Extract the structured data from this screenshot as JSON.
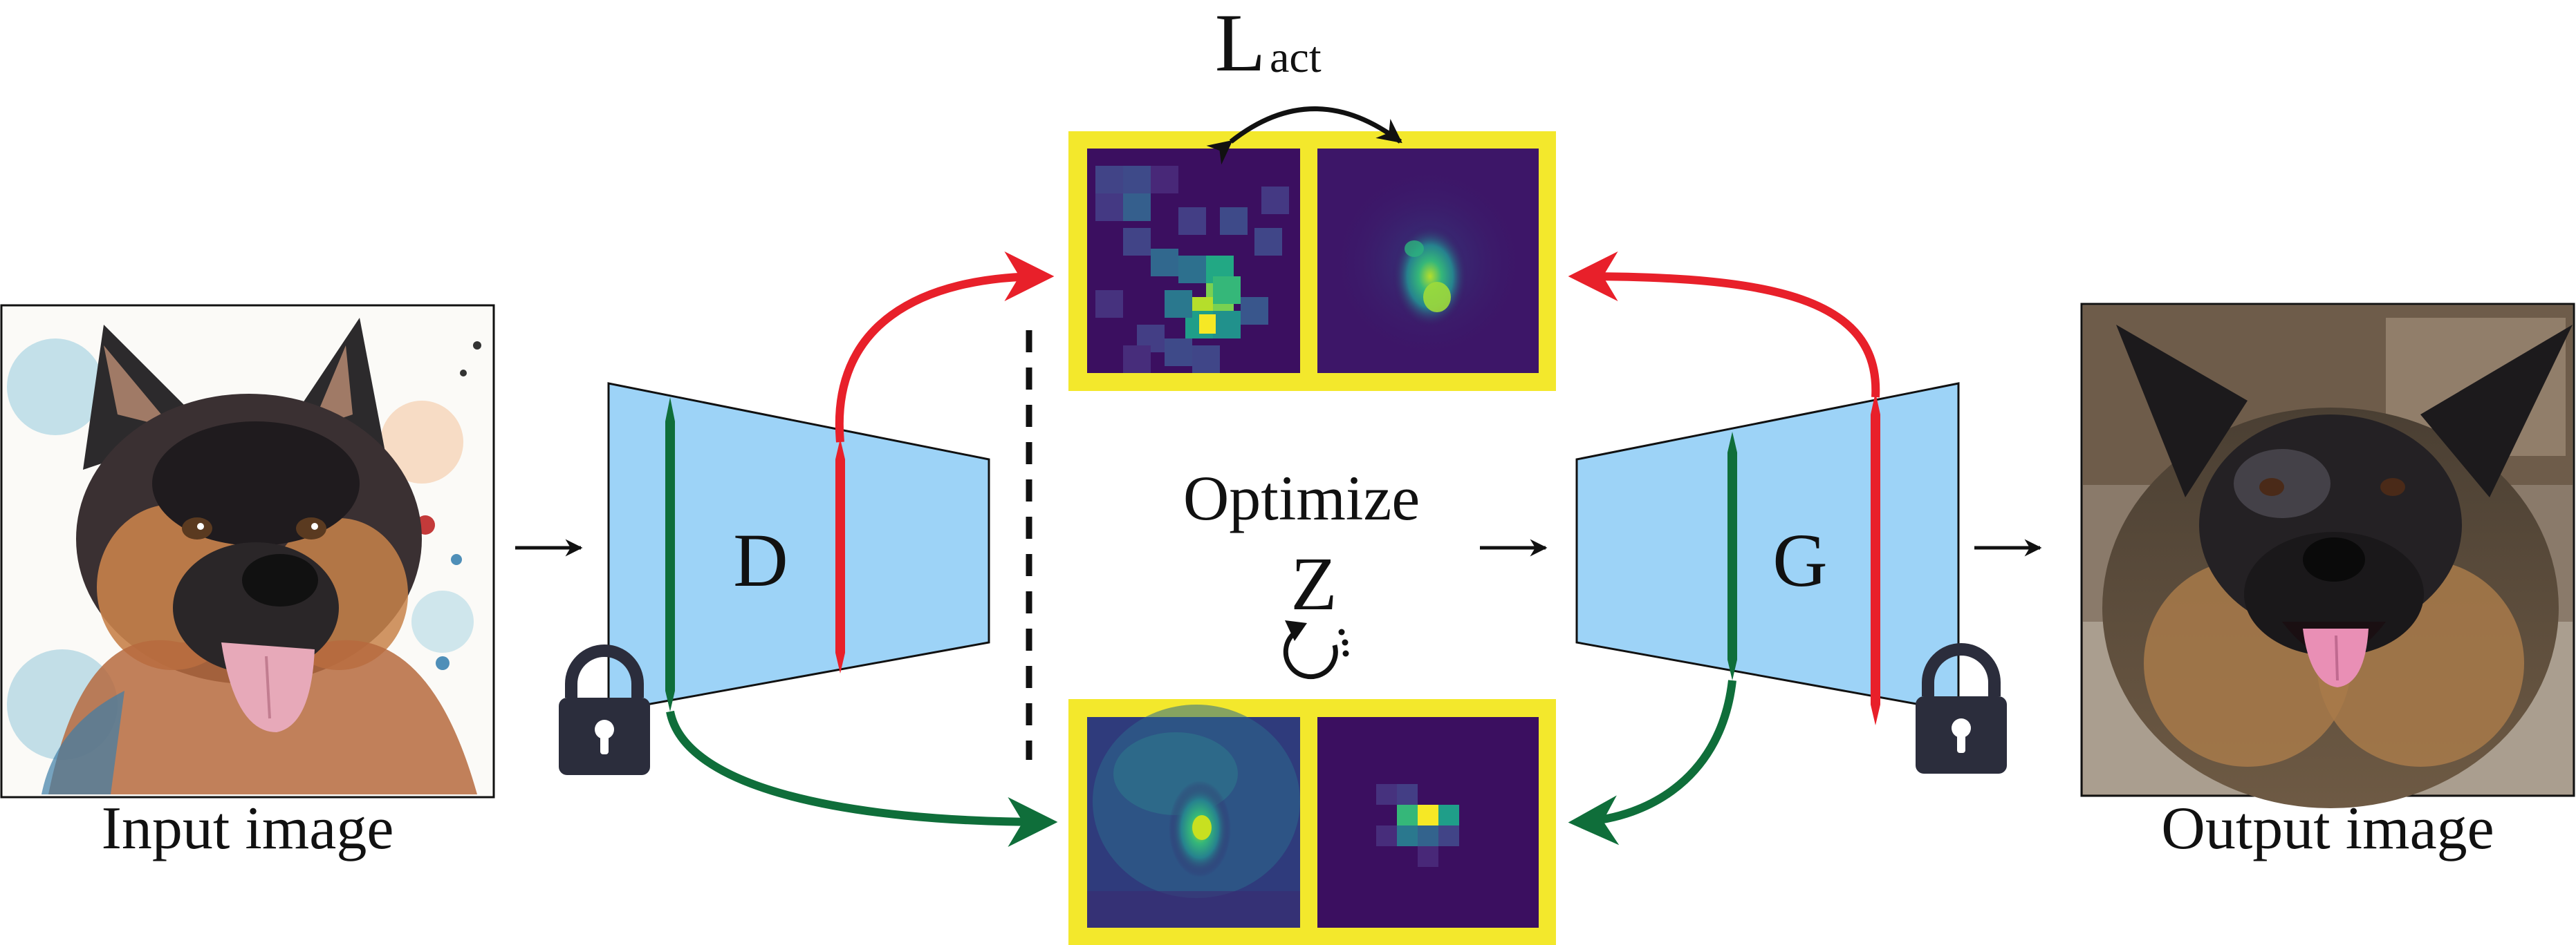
{
  "labels": {
    "input_image": "Input image",
    "output_image": "Output image",
    "discriminator": "D",
    "generator": "G",
    "optimize": "Optimize",
    "latent": "Z",
    "loss_main": "L",
    "loss_sub": "act"
  },
  "colors": {
    "trapezoid_fill": "#9dd3f7",
    "yellow_frame": "#f3e82c",
    "red_path": "#e8202a",
    "green_path": "#0f6e3a",
    "heatmap_background": "#3b0f60",
    "heatmap_bright": "#f6e825",
    "lock": "#2b2d3c"
  },
  "icons": {
    "lock_left": "lock-icon",
    "lock_right": "lock-icon",
    "refresh": "circular-arrow-icon"
  }
}
